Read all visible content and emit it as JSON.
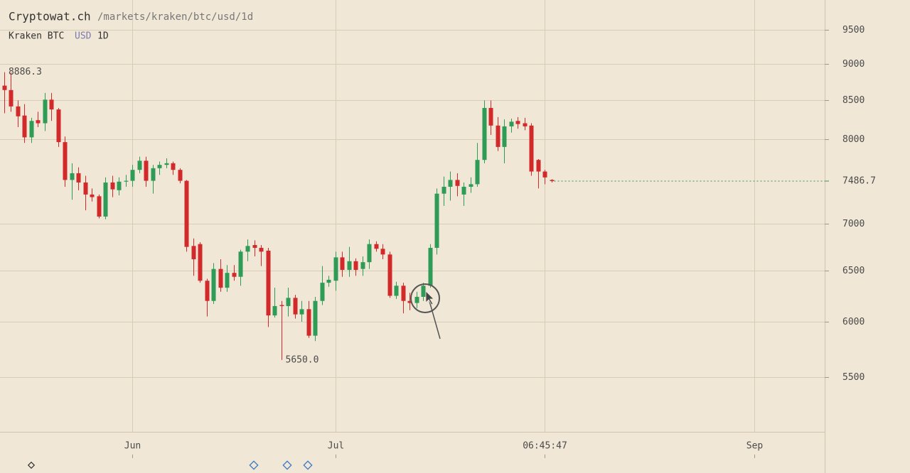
{
  "header": {
    "site": "Cryptowat.ch",
    "path": "/markets/kraken/btc/usd/1d",
    "market": "Kraken BTC",
    "quote": "USD",
    "period": "1D"
  },
  "chart_data": {
    "type": "candlestick",
    "log_scale": true,
    "grid": true,
    "up_color": "#2e9b57",
    "down_color": "#d2292b",
    "price_line_color": "#3f8f5a",
    "categories": [
      null,
      null,
      null,
      null,
      null,
      null,
      null,
      null,
      null,
      null,
      null,
      null,
      null,
      null,
      null,
      null,
      null,
      null,
      null,
      null,
      null,
      null,
      null,
      null,
      null,
      null,
      null,
      null,
      null,
      null,
      null,
      null,
      null,
      null,
      null,
      null,
      null,
      null,
      null,
      null,
      null,
      null,
      null,
      null,
      null,
      null,
      null,
      null,
      null,
      null,
      null,
      null,
      null,
      null,
      null,
      null,
      null,
      null,
      null,
      null,
      null,
      null,
      null,
      null,
      null,
      null,
      null,
      null,
      null,
      null,
      null,
      null,
      null,
      null,
      null,
      null,
      null,
      null,
      null,
      null,
      null,
      null
    ],
    "open": [
      8700,
      8640,
      8420,
      8300,
      8020,
      8240,
      8200,
      8510,
      8380,
      7960,
      7500,
      7580,
      7470,
      7330,
      7310,
      7080,
      7470,
      7380,
      7480,
      7490,
      7620,
      7730,
      7490,
      7640,
      7680,
      7700,
      7620,
      7490,
      6760,
      6780,
      6400,
      6200,
      6520,
      6330,
      6480,
      6440,
      6700,
      6770,
      6740,
      6710,
      6060,
      6160,
      6150,
      6230,
      6070,
      6120,
      5870,
      6200,
      6380,
      6400,
      6640,
      6510,
      6600,
      6520,
      6590,
      6780,
      6730,
      6670,
      6250,
      6350,
      6200,
      6180,
      6240,
      6350,
      6740,
      7340,
      7420,
      7500,
      7330,
      7420,
      7450,
      7740,
      8400,
      8170,
      7900,
      8160,
      8230,
      8200,
      8170,
      7740,
      7600,
      7500
    ],
    "high": [
      8886.3,
      8880,
      8500,
      8450,
      8270,
      8350,
      8600,
      8600,
      8400,
      8030,
      7700,
      7650,
      7550,
      7400,
      7330,
      7530,
      7550,
      7530,
      7560,
      7680,
      7780,
      7780,
      7680,
      7720,
      7760,
      7720,
      7640,
      7500,
      6840,
      6800,
      6420,
      6580,
      6620,
      6560,
      6560,
      6720,
      6830,
      6820,
      6770,
      6740,
      6330,
      6200,
      6330,
      6260,
      6200,
      6200,
      6240,
      6550,
      6450,
      6700,
      6700,
      6750,
      6630,
      6650,
      6830,
      6810,
      6780,
      6700,
      6390,
      6380,
      6280,
      6290,
      6380,
      6780,
      7400,
      7540,
      7600,
      7580,
      7470,
      7530,
      7950,
      8500,
      8500,
      8280,
      8250,
      8260,
      8280,
      8270,
      8200,
      7750,
      7620,
      7510
    ],
    "low": [
      8330,
      8350,
      8150,
      7950,
      7950,
      8150,
      8100,
      8230,
      7900,
      7420,
      7270,
      7380,
      7150,
      7250,
      7060,
      7050,
      7300,
      7320,
      7420,
      7420,
      7580,
      7420,
      7340,
      7560,
      7640,
      7560,
      7460,
      6700,
      6450,
      6380,
      6050,
      6170,
      6290,
      6290,
      6400,
      6350,
      6600,
      6650,
      6550,
      5950,
      6040,
      5650,
      6050,
      6030,
      6000,
      5850,
      5820,
      6160,
      6340,
      6300,
      6440,
      6440,
      6450,
      6450,
      6520,
      6700,
      6620,
      6230,
      6220,
      6080,
      6110,
      6130,
      6200,
      6330,
      6670,
      7200,
      7260,
      7310,
      7200,
      7350,
      7420,
      7700,
      8050,
      7850,
      7700,
      8080,
      8130,
      8110,
      7550,
      7400,
      7450,
      7470
    ],
    "close": [
      8640,
      8420,
      8290,
      8020,
      8230,
      8200,
      8510,
      8380,
      7960,
      7500,
      7580,
      7470,
      7330,
      7300,
      7080,
      7470,
      7390,
      7480,
      7490,
      7620,
      7730,
      7490,
      7640,
      7680,
      7700,
      7620,
      7490,
      6750,
      6620,
      6400,
      6200,
      6520,
      6330,
      6480,
      6440,
      6700,
      6760,
      6740,
      6700,
      6060,
      6150,
      6150,
      6230,
      6070,
      6120,
      5870,
      6200,
      6380,
      6410,
      6640,
      6510,
      6600,
      6510,
      6590,
      6780,
      6730,
      6670,
      6250,
      6350,
      6200,
      6180,
      6240,
      6350,
      6740,
      7340,
      7420,
      7500,
      7430,
      7420,
      7450,
      7740,
      8400,
      8170,
      7900,
      8160,
      8220,
      8190,
      8160,
      7600,
      7600,
      7530,
      7486.7
    ],
    "annotations": {
      "high": 8886.3,
      "low": {
        "value": 5650,
        "label": "5650.0"
      }
    },
    "xlim": [
      -0.63,
      121.47
    ],
    "xticks": [
      {
        "value": 19,
        "label": "Jun"
      },
      {
        "value": 49,
        "label": "Jul"
      },
      {
        "value": 80,
        "label": "06:45:47"
      },
      {
        "value": 111,
        "label": "Sep"
      }
    ],
    "ylim": [
      5046,
      9955
    ],
    "yticks": [
      5500,
      6000,
      6500,
      7000,
      8000,
      8500,
      9000,
      9500
    ]
  }
}
